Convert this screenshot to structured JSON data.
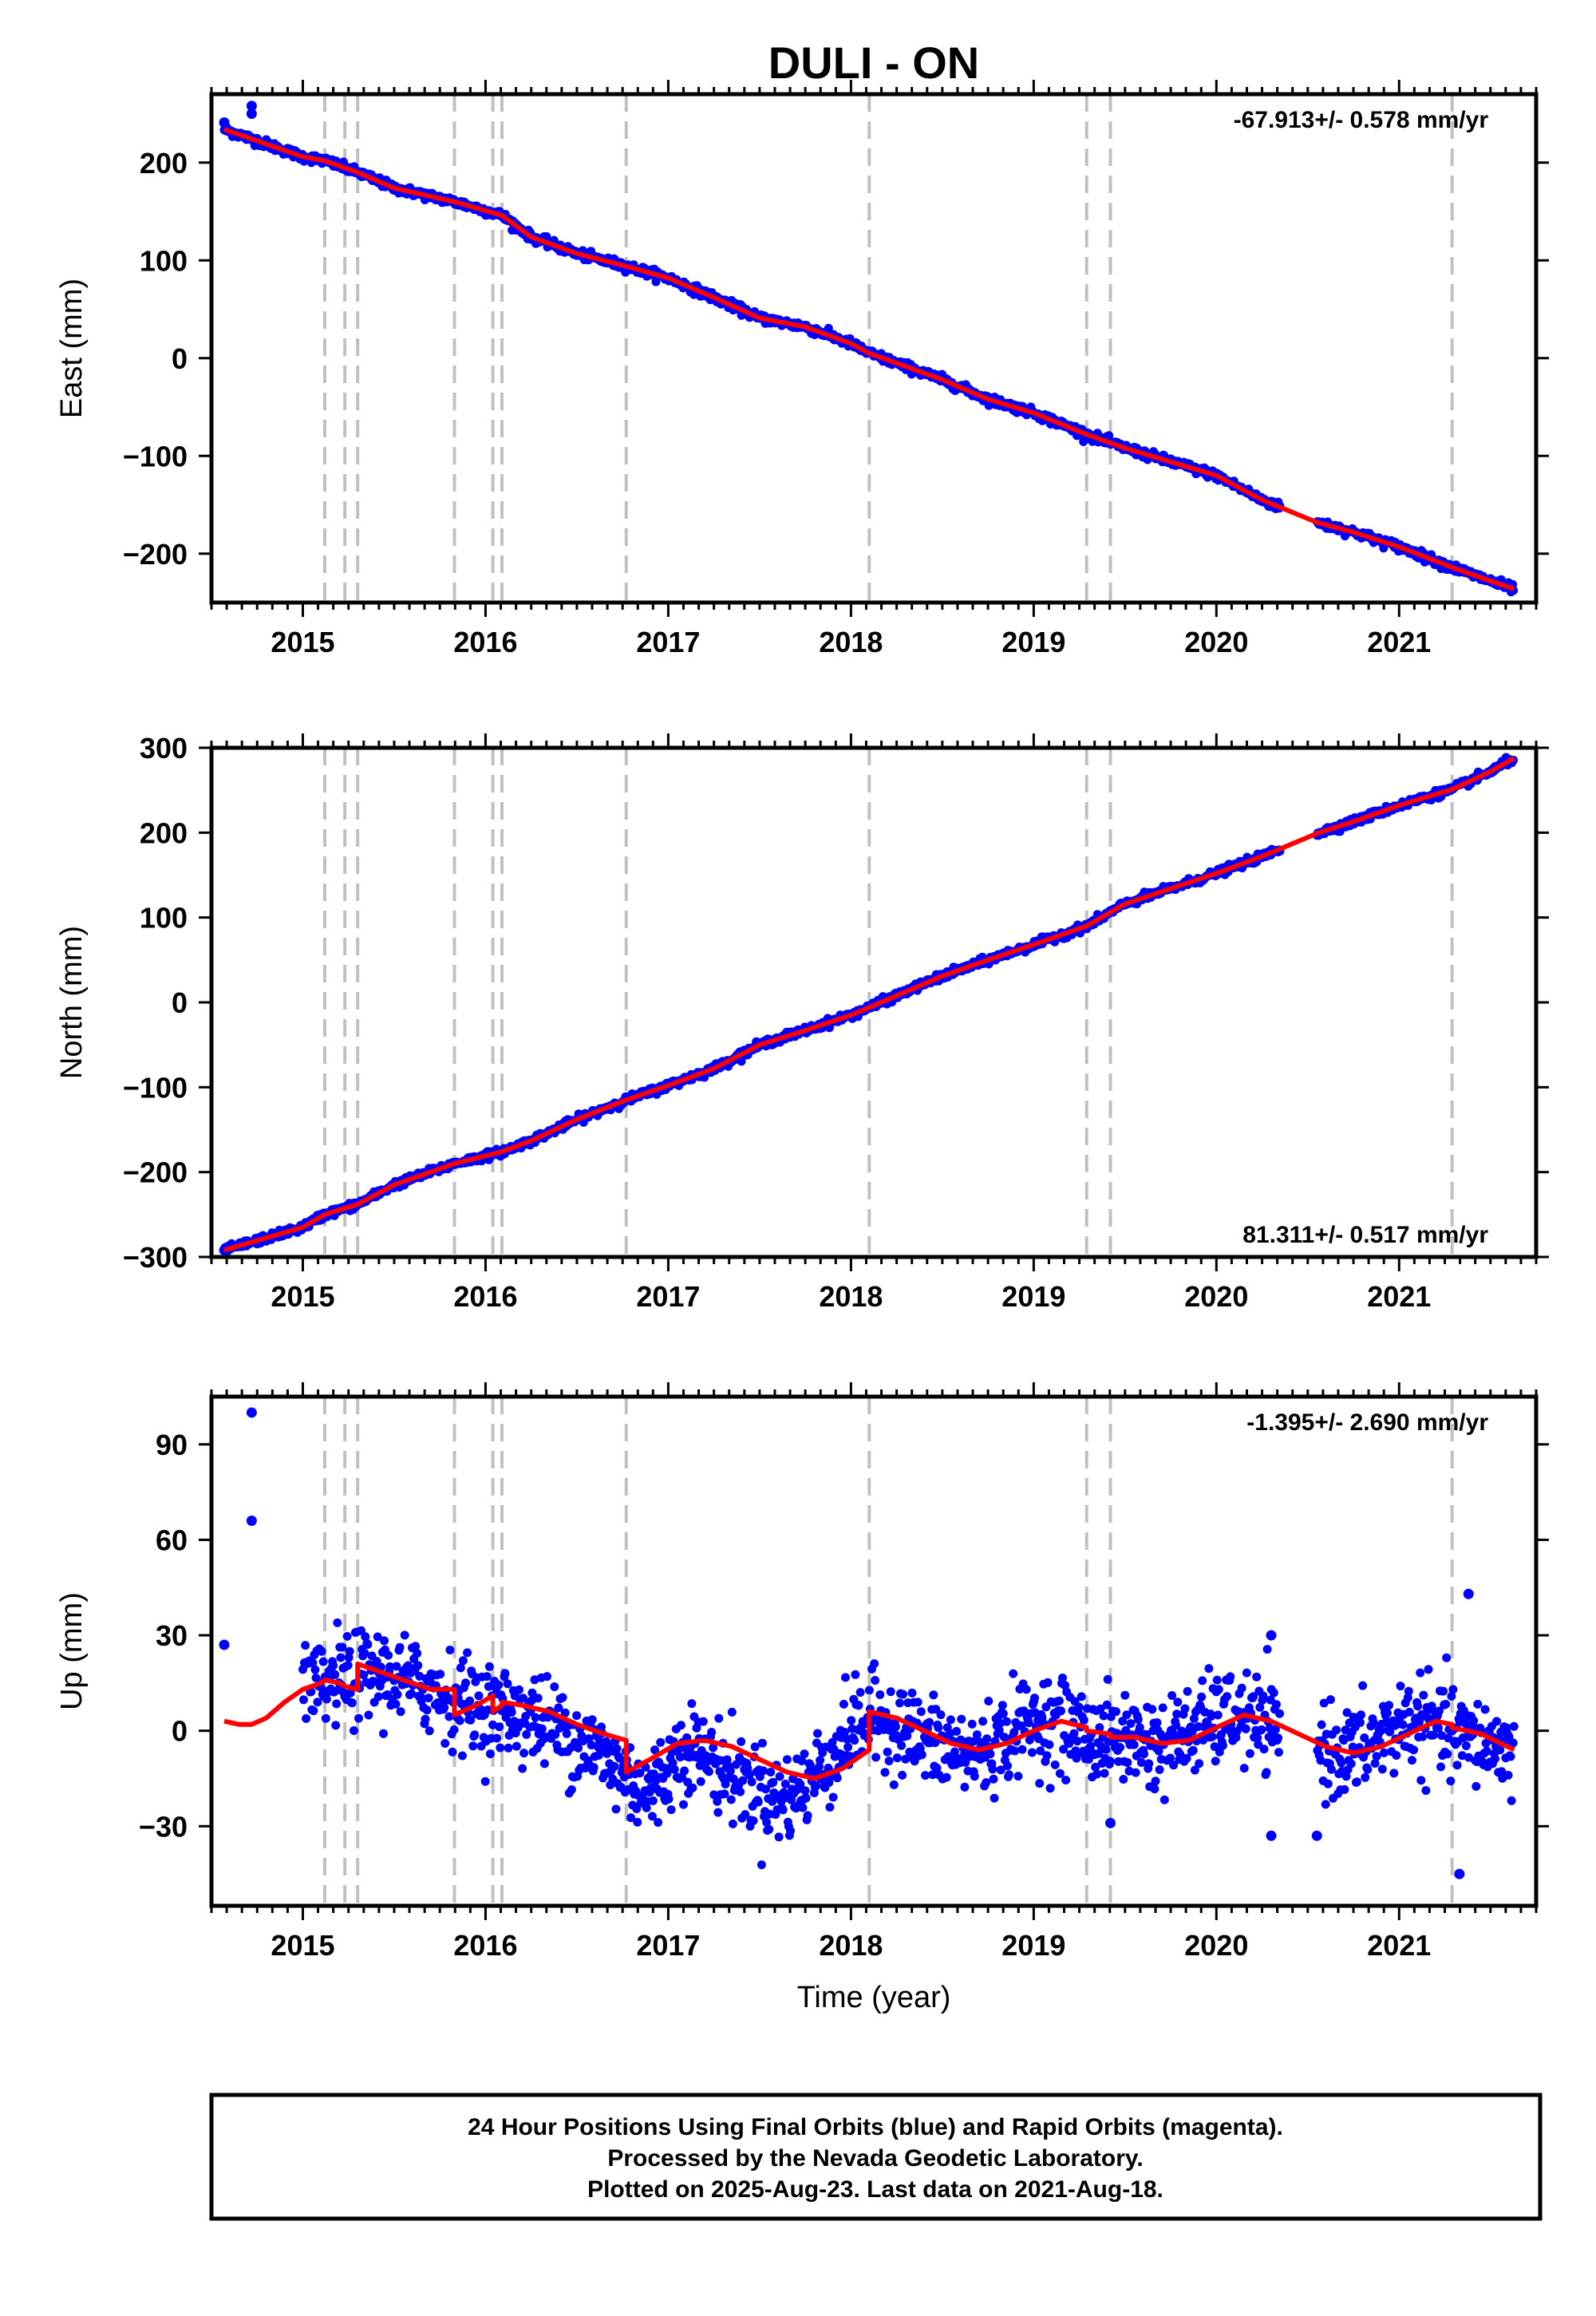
{
  "title": "DULI - ON",
  "x_axis": {
    "label": "Time (year)",
    "ticks": [
      "2015",
      "2016",
      "2017",
      "2018",
      "2019",
      "2020",
      "2021"
    ],
    "range": [
      2014.5,
      2021.75
    ]
  },
  "event_lines": [
    2015.12,
    2015.23,
    2015.3,
    2015.83,
    2016.04,
    2016.09,
    2016.77,
    2018.1,
    2019.29,
    2019.42,
    2021.29
  ],
  "colors": {
    "final_orbits": "#0000ff",
    "model": "#ff0000",
    "event_line": "#c0c0c0",
    "axis": "#000000"
  },
  "footer": {
    "line1": "24 Hour Positions Using Final Orbits (blue) and Rapid Orbits (magenta).",
    "line2": "Processed by the Nevada Geodetic Laboratory.",
    "line3": "Plotted on 2025-Aug-23. Last data on 2021-Aug-18."
  },
  "chart_data": [
    {
      "type": "scatter",
      "component": "east",
      "ylabel": "East (mm)",
      "ylim": [
        -250,
        270
      ],
      "yticks": [
        200,
        100,
        0,
        -100,
        -200
      ],
      "ytick_labels": [
        "200",
        "100",
        "0",
        "−100",
        "−200"
      ],
      "rate_label": "-67.913+/- 0.578 mm/yr",
      "rate_position": "top-right",
      "outliers": [
        [
          2014.57,
          241
        ],
        [
          2014.72,
          250
        ],
        [
          2014.72,
          258
        ]
      ],
      "series": [
        {
          "x": [
            2014.57,
            2015.0,
            2015.12,
            2015.3,
            2015.5,
            2015.83,
            2016.09,
            2016.25,
            2016.5,
            2016.77,
            2017.0,
            2017.25,
            2017.5,
            2017.75,
            2018.0,
            2018.1,
            2018.5,
            2018.75,
            2019.0,
            2019.29,
            2019.5,
            2019.75,
            2020.0,
            2020.25,
            2020.55,
            2020.75,
            2021.0,
            2021.29,
            2021.5,
            2021.63
          ],
          "y": [
            234,
            206,
            202,
            190,
            174,
            160,
            146,
            124,
            107,
            94,
            82,
            62,
            41,
            32,
            15,
            5,
            -22,
            -42,
            -56,
            -78,
            -92,
            -106,
            -120,
            -145,
            -168,
            -178,
            -193,
            -214,
            -228,
            -236
          ]
        }
      ],
      "model": {
        "x": [
          2014.57,
          2015.0,
          2015.12,
          2015.3,
          2015.5,
          2015.83,
          2016.09,
          2016.25,
          2016.5,
          2016.77,
          2017.0,
          2017.25,
          2017.5,
          2017.75,
          2018.0,
          2018.1,
          2018.5,
          2018.75,
          2019.0,
          2019.29,
          2019.5,
          2019.75,
          2020.0,
          2020.25,
          2020.55,
          2020.75,
          2021.0,
          2021.29,
          2021.5,
          2021.63
        ],
        "y": [
          234,
          206,
          202,
          190,
          174,
          160,
          146,
          124,
          107,
          94,
          82,
          62,
          41,
          32,
          15,
          5,
          -22,
          -42,
          -56,
          -78,
          -92,
          -106,
          -120,
          -145,
          -168,
          -178,
          -193,
          -214,
          -228,
          -236
        ]
      }
    },
    {
      "type": "scatter",
      "component": "north",
      "ylabel": "North (mm)",
      "ylim": [
        -300,
        300
      ],
      "yticks": [
        300,
        200,
        100,
        0,
        -100,
        -200,
        -300
      ],
      "ytick_labels": [
        "300",
        "200",
        "100",
        "0",
        "−100",
        "−200",
        "−300"
      ],
      "rate_label": "81.311+/- 0.517 mm/yr",
      "rate_position": "bottom-right",
      "outliers": [
        [
          2014.57,
          -292
        ]
      ],
      "series": [
        {
          "x": [
            2014.57,
            2015.0,
            2015.12,
            2015.3,
            2015.5,
            2015.83,
            2016.09,
            2016.25,
            2016.5,
            2016.77,
            2017.0,
            2017.25,
            2017.5,
            2017.75,
            2018.0,
            2018.1,
            2018.5,
            2018.75,
            2019.0,
            2019.29,
            2019.5,
            2019.75,
            2020.0,
            2020.25,
            2020.55,
            2020.75,
            2021.0,
            2021.29,
            2021.5,
            2021.63
          ],
          "y": [
            -292,
            -265,
            -250,
            -238,
            -215,
            -190,
            -176,
            -163,
            -138,
            -115,
            -98,
            -78,
            -50,
            -33,
            -15,
            -6,
            31,
            50,
            68,
            90,
            116,
            134,
            152,
            172,
            199,
            213,
            232,
            251,
            272,
            288
          ]
        }
      ],
      "model": {
        "x": [
          2014.57,
          2015.0,
          2015.12,
          2015.3,
          2015.5,
          2015.83,
          2016.09,
          2016.25,
          2016.5,
          2016.77,
          2017.0,
          2017.25,
          2017.5,
          2017.75,
          2018.0,
          2018.1,
          2018.5,
          2018.75,
          2019.0,
          2019.29,
          2019.5,
          2019.75,
          2020.0,
          2020.25,
          2020.55,
          2020.75,
          2021.0,
          2021.29,
          2021.5,
          2021.63
        ],
        "y": [
          -292,
          -265,
          -250,
          -238,
          -215,
          -190,
          -176,
          -163,
          -138,
          -115,
          -98,
          -78,
          -50,
          -33,
          -15,
          -6,
          31,
          50,
          68,
          90,
          116,
          134,
          152,
          172,
          199,
          213,
          232,
          251,
          272,
          288
        ]
      }
    },
    {
      "type": "scatter",
      "component": "up",
      "ylabel": "Up (mm)",
      "ylim": [
        -55,
        105
      ],
      "yticks": [
        90,
        60,
        30,
        0,
        -30
      ],
      "ytick_labels": [
        "90",
        "60",
        "30",
        "0",
        "−30"
      ],
      "rate_label": "-1.395+/- 2.690 mm/yr",
      "rate_position": "top-right",
      "outliers": [
        [
          2014.57,
          27
        ],
        [
          2014.72,
          66
        ],
        [
          2014.72,
          100
        ],
        [
          2020.3,
          30
        ],
        [
          2020.3,
          -33
        ],
        [
          2020.55,
          -33
        ],
        [
          2021.38,
          43
        ],
        [
          2021.33,
          -45
        ],
        [
          2019.42,
          -29
        ]
      ],
      "series": [
        {
          "x": [
            2015.0,
            2015.12,
            2015.2,
            2015.3,
            2015.4,
            2015.5,
            2015.6,
            2015.7,
            2015.83,
            2015.95,
            2016.09,
            2016.2,
            2016.3,
            2016.4,
            2016.5,
            2016.6,
            2016.77,
            2016.9,
            2017.0,
            2017.1,
            2017.2,
            2017.3,
            2017.4,
            2017.5,
            2017.6,
            2017.7,
            2017.8,
            2017.9,
            2018.0,
            2018.1,
            2018.2,
            2018.3,
            2018.4,
            2018.5,
            2018.6,
            2018.7,
            2018.8,
            2018.9,
            2019.0,
            2019.1,
            2019.2,
            2019.3,
            2019.4,
            2019.5,
            2019.6,
            2019.7,
            2019.8,
            2019.9,
            2020.0,
            2020.1,
            2020.2,
            2020.3,
            2020.55,
            2020.65,
            2020.75,
            2020.85,
            2020.95,
            2021.05,
            2021.15,
            2021.25,
            2021.35,
            2021.45,
            2021.55,
            2021.63
          ],
          "y": [
            12,
            13,
            16,
            17,
            18,
            16,
            15,
            13,
            10,
            8,
            6,
            5,
            3,
            1,
            -3,
            -6,
            -14,
            -20,
            -12,
            -4,
            -8,
            -12,
            -16,
            -18,
            -22,
            -20,
            -14,
            -8,
            0,
            4,
            3,
            0,
            -3,
            -5,
            -7,
            -7,
            -4,
            0,
            3,
            3,
            1,
            -2,
            -3,
            -2,
            -3,
            -5,
            -2,
            1,
            3,
            5,
            3,
            0,
            -4,
            -7,
            -7,
            -4,
            0,
            3,
            2,
            0,
            -2,
            -4,
            -5,
            -6
          ]
        }
      ],
      "model": {
        "x": [
          2014.57,
          2014.65,
          2014.72,
          2014.8,
          2014.9,
          2015.0,
          2015.1,
          2015.12,
          2015.2,
          2015.23,
          2015.3,
          2015.3,
          2015.45,
          2015.6,
          2015.7,
          2015.83,
          2015.83,
          2015.95,
          2016.04,
          2016.04,
          2016.09,
          2016.09,
          2016.2,
          2016.35,
          2016.5,
          2016.65,
          2016.77,
          2016.77,
          2016.9,
          2017.05,
          2017.2,
          2017.35,
          2017.5,
          2017.65,
          2017.8,
          2017.95,
          2018.1,
          2018.1,
          2018.25,
          2018.4,
          2018.55,
          2018.7,
          2018.85,
          2019.0,
          2019.15,
          2019.29,
          2019.29,
          2019.42,
          2019.42,
          2019.55,
          2019.7,
          2019.85,
          2020.0,
          2020.15,
          2020.3,
          2020.45,
          2020.6,
          2020.75,
          2020.9,
          2021.05,
          2021.2,
          2021.29,
          2021.29,
          2021.45,
          2021.63
        ],
        "y": [
          3,
          2,
          2,
          4,
          9,
          13,
          15,
          16,
          15,
          14,
          13,
          21,
          18,
          15,
          13,
          13,
          5,
          8,
          11,
          6,
          8,
          9,
          8,
          6,
          2,
          -1,
          -3,
          -13,
          -9,
          -4,
          -3,
          -5,
          -9,
          -13,
          -15,
          -12,
          -6,
          6,
          4,
          0,
          -4,
          -6,
          -4,
          0,
          3,
          1,
          0,
          -1,
          -2,
          -2,
          -4,
          -3,
          1,
          5,
          3,
          -1,
          -5,
          -7,
          -5,
          -1,
          3,
          2,
          1,
          -1,
          -6
        ]
      }
    }
  ]
}
